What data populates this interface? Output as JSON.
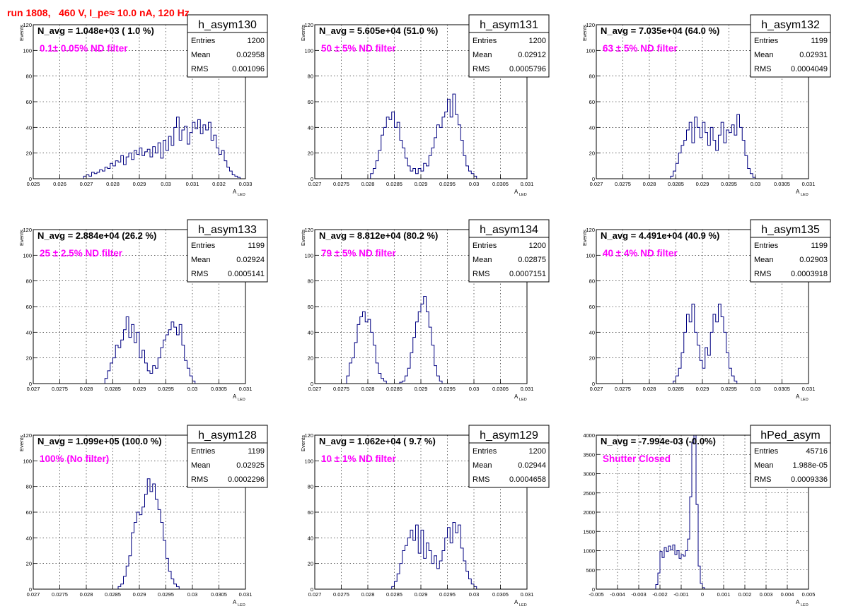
{
  "run_title": "run 1808,   460 V, I_pe≈ 10.0 nA, 120 Hz",
  "colors": {
    "histogram": "#000080",
    "filter_label": "#ff00ff",
    "run_title": "#ff0000",
    "grid": "#000000"
  },
  "chart_data": [
    {
      "type": "histogram",
      "name": "h_asym130",
      "navg": "N_avg = 1.048e+03 ( 1.0 %)",
      "filter": "0.1± 0.05% ND filter",
      "stats": [
        [
          "Entries",
          "1200"
        ],
        [
          "Mean",
          "0.02958"
        ],
        [
          "RMS",
          "0.001096"
        ]
      ],
      "xlabel": "A",
      "xlabel_sub": "LED",
      "ylabel": "Events",
      "xlim": [
        0.025,
        0.033
      ],
      "ylim": [
        0,
        120
      ],
      "xticks": [
        0.025,
        0.026,
        0.027,
        0.028,
        0.029,
        0.03,
        0.031,
        0.032,
        0.033
      ],
      "xtick_labels": [
        "0.025",
        "0.026",
        "0.027",
        "0.028",
        "0.029",
        "0.03",
        "0.031",
        "0.032",
        "0.033"
      ],
      "yticks": [
        0,
        20,
        40,
        60,
        80,
        100,
        120
      ],
      "ytick_labels": [
        "0",
        "20",
        "40",
        "60",
        "80",
        "100",
        "120"
      ],
      "grid": true,
      "bin_start": 0.0269,
      "bin_width": 0.0001,
      "counts": [
        2,
        3,
        2,
        5,
        4,
        5,
        7,
        6,
        9,
        8,
        12,
        10,
        14,
        13,
        18,
        11,
        17,
        20,
        15,
        22,
        19,
        24,
        18,
        21,
        23,
        17,
        25,
        20,
        28,
        16,
        30,
        22,
        33,
        26,
        40,
        48,
        30,
        38,
        41,
        27,
        36,
        44,
        39,
        46,
        35,
        42,
        38,
        44,
        30,
        34,
        24,
        19,
        22,
        14,
        9,
        6,
        3,
        2,
        1
      ]
    },
    {
      "type": "histogram",
      "name": "h_asym131",
      "navg": "N_avg = 5.605e+04 (51.0 %)",
      "filter": "50 ± 5% ND filter",
      "stats": [
        [
          "Entries",
          "1200"
        ],
        [
          "Mean",
          "0.02912"
        ],
        [
          "RMS",
          "0.0005796"
        ]
      ],
      "xlabel": "A",
      "xlabel_sub": "LED",
      "ylabel": "Events",
      "xlim": [
        0.027,
        0.031
      ],
      "ylim": [
        0,
        120
      ],
      "xticks": [
        0.027,
        0.0275,
        0.028,
        0.0285,
        0.029,
        0.0295,
        0.03,
        0.0305,
        0.031
      ],
      "xtick_labels": [
        "0.027",
        "0.0275",
        "0.028",
        "0.0285",
        "0.029",
        "0.0295",
        "0.03",
        "0.0305",
        "0.031"
      ],
      "yticks": [
        0,
        20,
        40,
        60,
        80,
        100,
        120
      ],
      "ytick_labels": [
        "0",
        "20",
        "40",
        "60",
        "80",
        "100",
        "120"
      ],
      "grid": true,
      "bin_start": 0.02805,
      "bin_width": 5e-05,
      "counts": [
        4,
        8,
        14,
        22,
        34,
        40,
        48,
        46,
        52,
        40,
        44,
        30,
        24,
        16,
        10,
        6,
        8,
        4,
        8,
        6,
        12,
        10,
        18,
        24,
        32,
        42,
        40,
        48,
        52,
        62,
        48,
        66,
        50,
        42,
        30,
        18,
        10,
        6,
        4,
        2
      ]
    },
    {
      "type": "histogram",
      "name": "h_asym132",
      "navg": "N_avg = 7.035e+04 (64.0 %)",
      "filter": "63 ± 5% ND filter",
      "stats": [
        [
          "Entries",
          "1199"
        ],
        [
          "Mean",
          "0.02931"
        ],
        [
          "RMS",
          "0.0004049"
        ]
      ],
      "xlabel": "A",
      "xlabel_sub": "LED",
      "ylabel": "Events",
      "xlim": [
        0.027,
        0.031
      ],
      "ylim": [
        0,
        120
      ],
      "xticks": [
        0.027,
        0.0275,
        0.028,
        0.0285,
        0.029,
        0.0295,
        0.03,
        0.0305,
        0.031
      ],
      "xtick_labels": [
        "0.027",
        "0.0275",
        "0.028",
        "0.0285",
        "0.029",
        "0.0295",
        "0.03",
        "0.0305",
        "0.031"
      ],
      "yticks": [
        0,
        20,
        40,
        60,
        80,
        100,
        120
      ],
      "ytick_labels": [
        "0",
        "20",
        "40",
        "60",
        "80",
        "100",
        "120"
      ],
      "grid": true,
      "bin_start": 0.0284,
      "bin_width": 5e-05,
      "counts": [
        2,
        6,
        12,
        20,
        26,
        30,
        38,
        44,
        28,
        48,
        40,
        32,
        44,
        36,
        26,
        40,
        30,
        22,
        34,
        44,
        28,
        38,
        36,
        42,
        34,
        50,
        40,
        30,
        18,
        8,
        4,
        1
      ]
    },
    {
      "type": "histogram",
      "name": "h_asym133",
      "navg": "N_avg = 2.884e+04 (26.2 %)",
      "filter": "25 ± 2.5% ND filter",
      "stats": [
        [
          "Entries",
          "1199"
        ],
        [
          "Mean",
          "0.02924"
        ],
        [
          "RMS",
          "0.0005141"
        ]
      ],
      "xlabel": "A",
      "xlabel_sub": "LED",
      "ylabel": "Events",
      "xlim": [
        0.027,
        0.031
      ],
      "ylim": [
        0,
        120
      ],
      "xticks": [
        0.027,
        0.0275,
        0.028,
        0.0285,
        0.029,
        0.0295,
        0.03,
        0.0305,
        0.031
      ],
      "xtick_labels": [
        "0.027",
        "0.0275",
        "0.028",
        "0.0285",
        "0.029",
        "0.0295",
        "0.03",
        "0.0305",
        "0.031"
      ],
      "yticks": [
        0,
        20,
        40,
        60,
        80,
        100,
        120
      ],
      "ytick_labels": [
        "0",
        "20",
        "40",
        "60",
        "80",
        "100",
        "120"
      ],
      "grid": true,
      "bin_start": 0.02835,
      "bin_width": 5e-05,
      "counts": [
        4,
        10,
        16,
        20,
        30,
        28,
        34,
        42,
        52,
        36,
        46,
        32,
        40,
        20,
        26,
        16,
        10,
        8,
        14,
        12,
        20,
        28,
        34,
        38,
        42,
        48,
        44,
        38,
        46,
        30,
        18,
        12,
        6,
        2
      ]
    },
    {
      "type": "histogram",
      "name": "h_asym134",
      "navg": "N_avg = 8.812e+04 (80.2 %)",
      "filter": "79 ± 5% ND filter",
      "stats": [
        [
          "Entries",
          "1200"
        ],
        [
          "Mean",
          "0.02875"
        ],
        [
          "RMS",
          "0.0007151"
        ]
      ],
      "xlabel": "A",
      "xlabel_sub": "LED",
      "ylabel": "Events",
      "xlim": [
        0.027,
        0.031
      ],
      "ylim": [
        0,
        120
      ],
      "xticks": [
        0.027,
        0.0275,
        0.028,
        0.0285,
        0.029,
        0.0295,
        0.03,
        0.0305,
        0.031
      ],
      "xtick_labels": [
        "0.027",
        "0.0275",
        "0.028",
        "0.0285",
        "0.029",
        "0.0295",
        "0.03",
        "0.0305",
        "0.031"
      ],
      "yticks": [
        0,
        20,
        40,
        60,
        80,
        100,
        120
      ],
      "ytick_labels": [
        "0",
        "20",
        "40",
        "60",
        "80",
        "100",
        "120"
      ],
      "grid": true,
      "bin_start": 0.0276,
      "bin_width": 5e-05,
      "counts": [
        6,
        16,
        20,
        32,
        46,
        52,
        56,
        48,
        50,
        40,
        30,
        16,
        8,
        4,
        2,
        0,
        0,
        0,
        0,
        0,
        1,
        2,
        6,
        12,
        24,
        36,
        48,
        56,
        62,
        68,
        56,
        44,
        30,
        14,
        6,
        2
      ]
    },
    {
      "type": "histogram",
      "name": "h_asym135",
      "navg": "N_avg = 4.491e+04 (40.9 %)",
      "filter": "40 ± 4% ND filter",
      "stats": [
        [
          "Entries",
          "1199"
        ],
        [
          "Mean",
          "0.02903"
        ],
        [
          "RMS",
          "0.0003918"
        ]
      ],
      "xlabel": "A",
      "xlabel_sub": "LED",
      "ylabel": "Events",
      "xlim": [
        0.027,
        0.031
      ],
      "ylim": [
        0,
        120
      ],
      "xticks": [
        0.027,
        0.0275,
        0.028,
        0.0285,
        0.029,
        0.0295,
        0.03,
        0.0305,
        0.031
      ],
      "xtick_labels": [
        "0.027",
        "0.0275",
        "0.028",
        "0.0285",
        "0.029",
        "0.0295",
        "0.03",
        "0.0305",
        "0.031"
      ],
      "yticks": [
        0,
        20,
        40,
        60,
        80,
        100,
        120
      ],
      "ytick_labels": [
        "0",
        "20",
        "40",
        "60",
        "80",
        "100",
        "120"
      ],
      "grid": true,
      "bin_start": 0.02845,
      "bin_width": 5e-05,
      "counts": [
        2,
        6,
        12,
        24,
        40,
        54,
        48,
        62,
        40,
        30,
        18,
        12,
        28,
        22,
        40,
        54,
        48,
        62,
        52,
        40,
        24,
        12,
        6,
        2
      ]
    },
    {
      "type": "histogram",
      "name": "h_asym128",
      "navg": "N_avg = 1.099e+05 (100.0 %)",
      "filter": "100% (No filter)",
      "stats": [
        [
          "Entries",
          "1199"
        ],
        [
          "Mean",
          "0.02925"
        ],
        [
          "RMS",
          "0.0002296"
        ]
      ],
      "xlabel": "A",
      "xlabel_sub": "LED",
      "ylabel": "Events",
      "xlim": [
        0.027,
        0.031
      ],
      "ylim": [
        0,
        120
      ],
      "xticks": [
        0.027,
        0.0275,
        0.028,
        0.0285,
        0.029,
        0.0295,
        0.03,
        0.0305,
        0.031
      ],
      "xtick_labels": [
        "0.027",
        "0.0275",
        "0.028",
        "0.0285",
        "0.029",
        "0.0295",
        "0.03",
        "0.0305",
        "0.031"
      ],
      "yticks": [
        0,
        20,
        40,
        60,
        80,
        100,
        120
      ],
      "ytick_labels": [
        "0",
        "20",
        "40",
        "60",
        "80",
        "100",
        "120"
      ],
      "grid": true,
      "bin_start": 0.0286,
      "bin_width": 5e-05,
      "counts": [
        2,
        4,
        10,
        18,
        26,
        44,
        52,
        60,
        58,
        64,
        74,
        86,
        76,
        82,
        70,
        62,
        52,
        38,
        24,
        14,
        8,
        4,
        2
      ]
    },
    {
      "type": "histogram",
      "name": "h_asym129",
      "navg": "N_avg = 1.062e+04 ( 9.7 %)",
      "filter": "10 ± 1% ND filter",
      "stats": [
        [
          "Entries",
          "1200"
        ],
        [
          "Mean",
          "0.02944"
        ],
        [
          "RMS",
          "0.0004658"
        ]
      ],
      "xlabel": "A",
      "xlabel_sub": "LED",
      "ylabel": "Events",
      "xlim": [
        0.027,
        0.031
      ],
      "ylim": [
        0,
        120
      ],
      "xticks": [
        0.027,
        0.0275,
        0.028,
        0.0285,
        0.029,
        0.0295,
        0.03,
        0.0305,
        0.031
      ],
      "xtick_labels": [
        "0.027",
        "0.0275",
        "0.028",
        "0.0285",
        "0.029",
        "0.0295",
        "0.03",
        "0.0305",
        "0.031"
      ],
      "yticks": [
        0,
        20,
        40,
        60,
        80,
        100,
        120
      ],
      "ytick_labels": [
        "0",
        "20",
        "40",
        "60",
        "80",
        "100",
        "120"
      ],
      "grid": true,
      "bin_start": 0.02845,
      "bin_width": 5e-05,
      "counts": [
        2,
        6,
        12,
        20,
        30,
        34,
        40,
        46,
        38,
        50,
        28,
        46,
        24,
        36,
        30,
        20,
        26,
        16,
        22,
        30,
        40,
        48,
        36,
        52,
        44,
        50,
        32,
        22,
        14,
        8,
        4,
        2
      ]
    },
    {
      "type": "histogram",
      "name": "hPed_asym",
      "navg": "N_avg = -7.994e-03 (-0.0%)",
      "filter": "Shutter Closed",
      "stats": [
        [
          "Entries",
          "45716"
        ],
        [
          "Mean",
          "1.988e-05"
        ],
        [
          "RMS",
          "0.0009336"
        ]
      ],
      "xlabel": "A",
      "xlabel_sub": "LED",
      "ylabel": "",
      "xlim": [
        -0.005,
        0.005
      ],
      "ylim": [
        0,
        4000
      ],
      "xticks": [
        -0.005,
        -0.004,
        -0.003,
        -0.002,
        -0.001,
        0,
        0.001,
        0.002,
        0.003,
        0.004,
        0.005
      ],
      "xtick_labels": [
        "-0.005",
        "-0.004",
        "-0.003",
        "-0.002",
        "-0.001",
        "0",
        "0.001",
        "0.002",
        "0.003",
        "0.004",
        "0.005"
      ],
      "yticks": [
        0,
        500,
        1000,
        1500,
        2000,
        2500,
        3000,
        3500,
        4000
      ],
      "ytick_labels": [
        "0",
        "500",
        "1000",
        "1500",
        "2000",
        "2500",
        "3000",
        "3500",
        "4000"
      ],
      "grid": true,
      "bin_start": -0.0022,
      "bin_width": 0.0001,
      "counts": [
        120,
        420,
        980,
        820,
        1080,
        980,
        1120,
        1020,
        1150,
        900,
        1000,
        800,
        900,
        860,
        1000,
        1300,
        2400,
        3800,
        4000,
        2200,
        600,
        150,
        40
      ]
    }
  ]
}
